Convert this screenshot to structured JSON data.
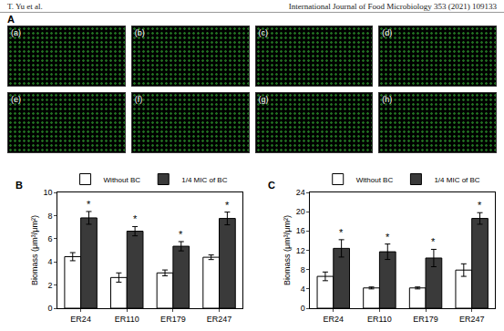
{
  "header": {
    "left": "T. Yu et al.",
    "right": "International Journal of Food Microbiology 353 (2021) 109133"
  },
  "panel_a": {
    "label": "A",
    "images": [
      "(a)",
      "(b)",
      "(c)",
      "(d)",
      "(e)",
      "(f)",
      "(g)",
      "(h)"
    ]
  },
  "chart_data": [
    {
      "label": "B",
      "type": "bar",
      "categories": [
        "ER24",
        "ER110",
        "ER179",
        "ER247"
      ],
      "y_label": "Biomass (μm³/μm²)",
      "ylim": [
        0,
        10
      ],
      "yticks": [
        0,
        2,
        4,
        6,
        8,
        10
      ],
      "legend": "top",
      "grid": false,
      "series": [
        {
          "name": "Without BC",
          "color": "#ffffff",
          "values": [
            4.45,
            2.65,
            3.05,
            4.4
          ],
          "errors": [
            0.35,
            0.4,
            0.25,
            0.2
          ]
        },
        {
          "name": "1/4 MIC of BC",
          "color": "#3a3a3a",
          "values": [
            7.8,
            6.65,
            5.35,
            7.75
          ],
          "errors": [
            0.55,
            0.4,
            0.4,
            0.55
          ],
          "annotations": [
            "*",
            "*",
            "*",
            "*"
          ]
        }
      ]
    },
    {
      "label": "C",
      "type": "bar",
      "categories": [
        "ER24",
        "ER110",
        "ER179",
        "ER247"
      ],
      "y_label": "Biomass (μm³/μm²)",
      "ylim": [
        0,
        24
      ],
      "yticks": [
        0,
        4,
        8,
        12,
        16,
        20,
        24
      ],
      "legend": "top",
      "grid": false,
      "series": [
        {
          "name": "Without BC",
          "color": "#ffffff",
          "values": [
            6.6,
            4.2,
            4.2,
            7.9
          ],
          "errors": [
            0.9,
            0.2,
            0.2,
            1.3
          ]
        },
        {
          "name": "1/4 MIC of BC",
          "color": "#3a3a3a",
          "values": [
            12.4,
            11.7,
            10.4,
            18.6
          ],
          "errors": [
            1.8,
            1.6,
            1.8,
            1.2
          ],
          "annotations": [
            "*",
            "*",
            "*",
            "*"
          ]
        }
      ]
    }
  ]
}
